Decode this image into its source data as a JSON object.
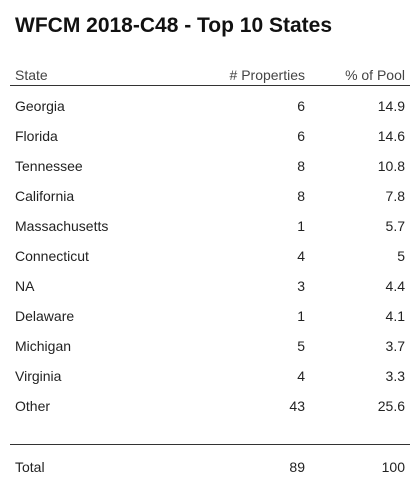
{
  "title": "WFCM 2018-C48 - Top 10 States",
  "columns": {
    "state": "State",
    "properties": "# Properties",
    "pct": "% of Pool"
  },
  "chart_data": {
    "type": "table",
    "title": "WFCM 2018-C48 - Top 10 States",
    "columns": [
      "State",
      "# Properties",
      "% of Pool"
    ],
    "rows": [
      {
        "state": "Georgia",
        "properties": "6",
        "pct": "14.9"
      },
      {
        "state": "Florida",
        "properties": "6",
        "pct": "14.6"
      },
      {
        "state": "Tennessee",
        "properties": "8",
        "pct": "10.8"
      },
      {
        "state": "California",
        "properties": "8",
        "pct": "7.8"
      },
      {
        "state": "Massachusetts",
        "properties": "1",
        "pct": "5.7"
      },
      {
        "state": "Connecticut",
        "properties": "4",
        "pct": "5"
      },
      {
        "state": "NA",
        "properties": "3",
        "pct": "4.4"
      },
      {
        "state": "Delaware",
        "properties": "1",
        "pct": "4.1"
      },
      {
        "state": "Michigan",
        "properties": "5",
        "pct": "3.7"
      },
      {
        "state": "Virginia",
        "properties": "4",
        "pct": "3.3"
      },
      {
        "state": "Other",
        "properties": "43",
        "pct": "25.6"
      }
    ],
    "total": {
      "state": "Total",
      "properties": "89",
      "pct": "100"
    }
  }
}
